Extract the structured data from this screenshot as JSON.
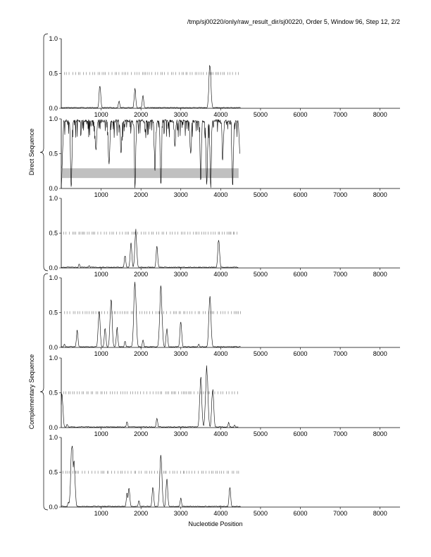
{
  "header": {
    "title": "/tmp/sj00220/only/raw_result_dir/sj00220, Order 5, Window 96, Step 12, 2/2"
  },
  "groups": {
    "direct_label": "Direct Sequence",
    "complementary_label": "Complementary Sequence"
  },
  "xaxis_label": "Nucleotide Position",
  "chart_data": [
    {
      "type": "line",
      "group": "Direct Sequence",
      "panel": 1,
      "xlim": [
        0,
        8500
      ],
      "ylim": [
        0,
        1
      ],
      "yticks": [
        "0.0",
        "0.5",
        "1.0"
      ],
      "xticks": [
        1000,
        2000,
        3000,
        4000,
        5000,
        6000,
        7000,
        8000
      ],
      "marker_row_y": 0.5,
      "marker_range": [
        0,
        4500
      ],
      "peaks": [
        [
          970,
          0.35
        ],
        [
          1450,
          0.12
        ],
        [
          1850,
          0.3
        ],
        [
          2050,
          0.2
        ],
        [
          3730,
          0.68
        ]
      ]
    },
    {
      "type": "line",
      "group": "Direct Sequence",
      "panel": 2,
      "xlim": [
        0,
        8500
      ],
      "ylim": [
        0,
        1
      ],
      "yticks": [
        "0.0",
        "0.5",
        "1.0"
      ],
      "xticks": [
        1000,
        2000,
        3000,
        4000,
        5000,
        6000,
        7000,
        8000
      ],
      "shaded_band": {
        "x": [
          0,
          4450
        ],
        "y": [
          0.15,
          0.29
        ]
      },
      "line_range": [
        0,
        4450
      ],
      "dips": [
        [
          250,
          0.02
        ],
        [
          870,
          0.55
        ],
        [
          1200,
          0.35
        ],
        [
          1500,
          0.5
        ],
        [
          1850,
          0.0
        ],
        [
          2350,
          0.25
        ],
        [
          2500,
          0.05
        ],
        [
          2850,
          0.6
        ],
        [
          3250,
          0.5
        ],
        [
          3500,
          0.1
        ],
        [
          3650,
          0.05
        ],
        [
          3750,
          0.0
        ],
        [
          4050,
          0.4
        ],
        [
          4300,
          0.02
        ]
      ],
      "tail_value": 0.5
    },
    {
      "type": "line",
      "group": "Direct Sequence",
      "panel": 3,
      "xlim": [
        0,
        8500
      ],
      "ylim": [
        0,
        1
      ],
      "yticks": [
        "0.0",
        "0.5",
        "1.0"
      ],
      "xticks": [
        1000,
        2000,
        3000,
        4000,
        5000,
        6000,
        7000,
        8000
      ],
      "marker_row_y": 0.5,
      "marker_range": [
        0,
        4450
      ],
      "peaks": [
        [
          450,
          0.06
        ],
        [
          700,
          0.04
        ],
        [
          1600,
          0.2
        ],
        [
          1750,
          0.38
        ],
        [
          1870,
          0.57
        ],
        [
          2400,
          0.33
        ],
        [
          3950,
          0.46
        ]
      ]
    },
    {
      "type": "line",
      "group": "Complementary Sequence",
      "panel": 4,
      "xlim": [
        0,
        8500
      ],
      "ylim": [
        0,
        1
      ],
      "yticks": [
        "0.0",
        "0.5",
        "1.0"
      ],
      "xticks": [
        1000,
        2000,
        3000,
        4000,
        5000,
        6000,
        7000,
        8000
      ],
      "marker_row_y": 0.5,
      "marker_range": [
        0,
        4500
      ],
      "peaks": [
        [
          80,
          0.05
        ],
        [
          400,
          0.27
        ],
        [
          950,
          0.58
        ],
        [
          1100,
          0.3
        ],
        [
          1250,
          0.75
        ],
        [
          1400,
          0.3
        ],
        [
          1600,
          0.1
        ],
        [
          1850,
          0.98
        ],
        [
          2050,
          0.12
        ],
        [
          2500,
          0.93
        ],
        [
          2650,
          0.3
        ],
        [
          3000,
          0.42
        ],
        [
          3450,
          0.05
        ],
        [
          3730,
          0.8
        ]
      ]
    },
    {
      "type": "line",
      "group": "Complementary Sequence",
      "panel": 5,
      "xlim": [
        0,
        8500
      ],
      "ylim": [
        0,
        1
      ],
      "yticks": [
        "0.0",
        "0.5",
        "1.0"
      ],
      "xticks": [
        1000,
        2000,
        3000,
        4000,
        5000,
        6000,
        7000,
        8000
      ],
      "marker_row_y": 0.5,
      "marker_range": [
        0,
        4450
      ],
      "peaks": [
        [
          20,
          0.52
        ],
        [
          150,
          0.05
        ],
        [
          1650,
          0.1
        ],
        [
          2400,
          0.15
        ],
        [
          3500,
          0.75
        ],
        [
          3650,
          0.92
        ],
        [
          3800,
          0.6
        ],
        [
          4200,
          0.08
        ],
        [
          4350,
          0.04
        ]
      ]
    },
    {
      "type": "line",
      "group": "Complementary Sequence",
      "panel": 6,
      "xlim": [
        0,
        8500
      ],
      "ylim": [
        0,
        1
      ],
      "yticks": [
        "0.0",
        "0.5",
        "1.0"
      ],
      "xticks": [
        1000,
        2000,
        3000,
        4000,
        5000,
        6000,
        7000,
        8000
      ],
      "marker_row_y": 0.5,
      "marker_range": [
        0,
        4500
      ],
      "peaks": [
        [
          180,
          0.08
        ],
        [
          270,
          1.0
        ],
        [
          320,
          0.7
        ],
        [
          1650,
          0.22
        ],
        [
          1700,
          0.3
        ],
        [
          1950,
          0.1
        ],
        [
          2300,
          0.32
        ],
        [
          2500,
          0.82
        ],
        [
          2650,
          0.42
        ],
        [
          3000,
          0.15
        ],
        [
          4230,
          0.32
        ]
      ]
    }
  ]
}
